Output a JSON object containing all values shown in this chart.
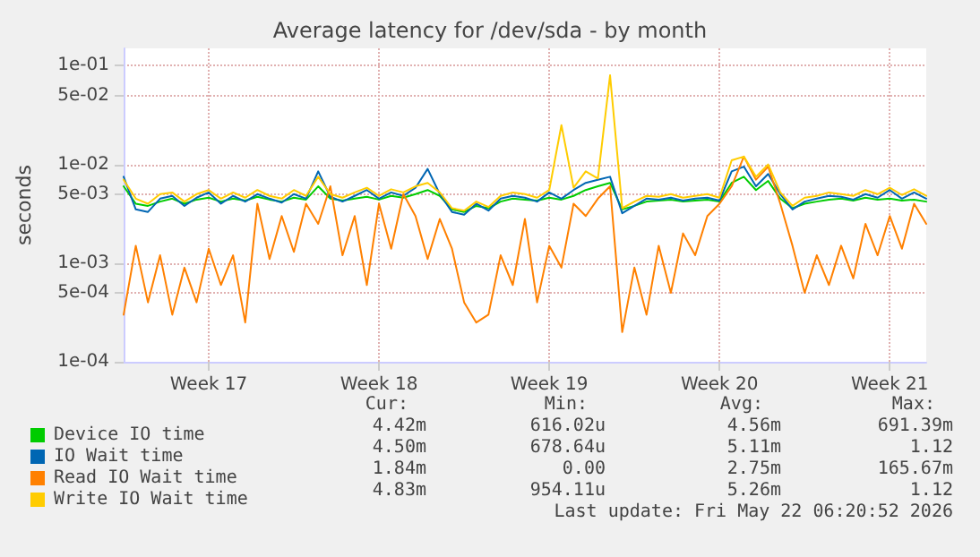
{
  "chart_data": {
    "type": "line",
    "title": "Average latency for /dev/sda - by month",
    "ylabel": "seconds",
    "log": "y",
    "grid": true,
    "legend": "bottom left",
    "marker": "none",
    "line_style": "solid",
    "ylim": [
      0.0001,
      0.15
    ],
    "yticks": [
      {
        "value": 0.0001,
        "label": "1e-04"
      },
      {
        "value": 0.0005,
        "label": "5e-04"
      },
      {
        "value": 0.001,
        "label": "1e-03"
      },
      {
        "value": 0.005,
        "label": "5e-03"
      },
      {
        "value": 0.01,
        "label": "1e-02"
      },
      {
        "value": 0.05,
        "label": "5e-02"
      },
      {
        "value": 0.1,
        "label": "1e-01"
      }
    ],
    "categories": [
      null,
      null,
      null,
      null,
      null,
      null,
      null,
      "Week 17",
      null,
      null,
      null,
      null,
      null,
      null,
      null,
      null,
      null,
      null,
      null,
      null,
      null,
      "Week 18",
      null,
      null,
      null,
      null,
      null,
      null,
      null,
      null,
      null,
      null,
      null,
      null,
      null,
      "Week 19",
      null,
      null,
      null,
      null,
      null,
      null,
      null,
      null,
      null,
      null,
      null,
      null,
      null,
      "Week 20",
      null,
      null,
      null,
      null,
      null,
      null,
      null,
      null,
      null,
      null,
      null,
      null,
      null,
      "Week 21",
      null,
      null,
      null
    ],
    "series": [
      {
        "name": "Device IO time",
        "color": "#00cc00",
        "values": [
          0.006,
          0.004,
          0.0038,
          0.0042,
          0.0045,
          0.004,
          0.0044,
          0.0046,
          0.0042,
          0.0045,
          0.0043,
          0.0047,
          0.0044,
          0.0042,
          0.0046,
          0.0044,
          0.006,
          0.0045,
          0.0043,
          0.0045,
          0.0047,
          0.0044,
          0.0048,
          0.0046,
          0.005,
          0.0055,
          0.0048,
          0.0035,
          0.0033,
          0.0038,
          0.0036,
          0.0042,
          0.0045,
          0.0044,
          0.0043,
          0.0046,
          0.0044,
          0.0048,
          0.0055,
          0.006,
          0.0065,
          0.0035,
          0.0038,
          0.0042,
          0.0043,
          0.0044,
          0.0042,
          0.0043,
          0.0044,
          0.0042,
          0.0065,
          0.0075,
          0.0055,
          0.0068,
          0.0045,
          0.0036,
          0.004,
          0.0042,
          0.0044,
          0.0045,
          0.0043,
          0.0046,
          0.0044,
          0.0045,
          0.0043,
          0.0044,
          0.0042
        ]
      },
      {
        "name": "IO Wait time",
        "color": "#0066b3",
        "values": [
          0.0075,
          0.0035,
          0.0033,
          0.0045,
          0.0048,
          0.0038,
          0.0046,
          0.0052,
          0.004,
          0.0048,
          0.0042,
          0.005,
          0.0045,
          0.0041,
          0.005,
          0.0045,
          0.0085,
          0.0047,
          0.0042,
          0.0048,
          0.0055,
          0.0045,
          0.0052,
          0.0048,
          0.0058,
          0.009,
          0.005,
          0.0033,
          0.0031,
          0.004,
          0.0034,
          0.0045,
          0.0048,
          0.0046,
          0.0042,
          0.0052,
          0.0045,
          0.0055,
          0.0065,
          0.007,
          0.0075,
          0.0032,
          0.0038,
          0.0045,
          0.0044,
          0.0046,
          0.0043,
          0.0045,
          0.0046,
          0.0043,
          0.0085,
          0.0095,
          0.006,
          0.008,
          0.005,
          0.0035,
          0.0042,
          0.0045,
          0.0048,
          0.0047,
          0.0044,
          0.005,
          0.0046,
          0.0055,
          0.0045,
          0.0052,
          0.0045
        ]
      },
      {
        "name": "Read IO Wait time",
        "color": "#ff8000",
        "values": [
          0.0003,
          0.0015,
          0.0004,
          0.0012,
          0.0003,
          0.0009,
          0.0004,
          0.0014,
          0.0006,
          0.0012,
          0.00025,
          0.004,
          0.0011,
          0.003,
          0.0013,
          0.004,
          0.0025,
          0.006,
          0.0012,
          0.003,
          0.0006,
          0.004,
          0.0014,
          0.005,
          0.003,
          0.0011,
          0.0028,
          0.0014,
          0.0004,
          0.00025,
          0.0003,
          0.0012,
          0.0006,
          0.0028,
          0.0004,
          0.0015,
          0.0009,
          0.004,
          0.003,
          0.0045,
          0.006,
          0.0002,
          0.0009,
          0.0003,
          0.0015,
          0.0005,
          0.002,
          0.0012,
          0.003,
          0.004,
          0.006,
          0.012,
          0.007,
          0.0095,
          0.004,
          0.0015,
          0.0005,
          0.0012,
          0.0006,
          0.0015,
          0.0007,
          0.0025,
          0.0012,
          0.003,
          0.0014,
          0.004,
          0.0025
        ]
      },
      {
        "name": "Write IO Wait time",
        "color": "#ffcc00",
        "values": [
          0.007,
          0.0045,
          0.004,
          0.005,
          0.0052,
          0.0042,
          0.005,
          0.0055,
          0.0045,
          0.0052,
          0.0046,
          0.0055,
          0.0048,
          0.0045,
          0.0055,
          0.0048,
          0.0075,
          0.005,
          0.0046,
          0.0052,
          0.0058,
          0.0048,
          0.0056,
          0.0052,
          0.006,
          0.0065,
          0.0052,
          0.0036,
          0.0034,
          0.0042,
          0.0037,
          0.0048,
          0.0052,
          0.005,
          0.0046,
          0.0055,
          0.025,
          0.0058,
          0.0085,
          0.0072,
          0.08,
          0.0036,
          0.0042,
          0.0048,
          0.0047,
          0.005,
          0.0046,
          0.0048,
          0.005,
          0.0046,
          0.011,
          0.012,
          0.0075,
          0.01,
          0.0052,
          0.0038,
          0.0046,
          0.0048,
          0.0052,
          0.005,
          0.0048,
          0.0055,
          0.005,
          0.0058,
          0.0049,
          0.0056,
          0.0048
        ]
      }
    ],
    "annotations": [
      "Cur:",
      "Min:",
      "Avg:",
      "Max:",
      "4.42m",
      "616.02u",
      "4.56m",
      "691.39m",
      "4.50m",
      "678.64u",
      "5.11m",
      "1.12",
      "1.84m",
      "0.00",
      "2.75m",
      "165.67m",
      "4.83m",
      "954.11u",
      "5.26m",
      "1.12",
      "Last update: Fri May 22 06:20:52 2026"
    ]
  }
}
